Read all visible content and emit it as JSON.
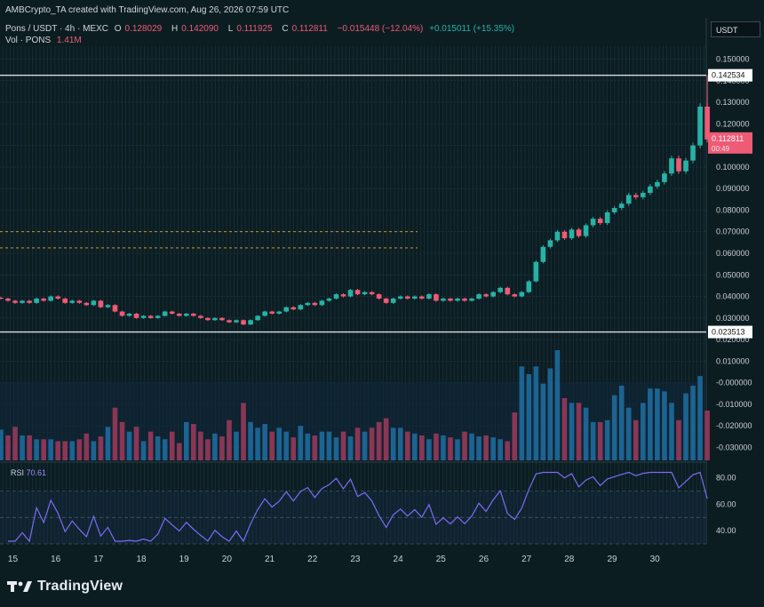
{
  "header": {
    "credit": "AMBCrypto_TA created with TradingView.com, Aug 26, 2026 07:59 UTC",
    "symbol": "Pons / USDT · 4h · MEXC",
    "o_label": "O",
    "o_value": "0.128029",
    "h_label": "H",
    "h_value": "0.142090",
    "l_label": "L",
    "l_value": "0.111925",
    "c_label": "C",
    "c_value": "0.112811",
    "change": "−0.015448 (−12.04%)",
    "change2": "+0.015011 (+15.35%)",
    "vol_label": "Vol · PONS",
    "vol_value": "1.41M"
  },
  "quote_badge": "USDT",
  "rsi": {
    "label": "RSI",
    "value": "70.61"
  },
  "brand": "TradingView",
  "colors": {
    "up": "#26b3a6",
    "down": "#ef5a74",
    "rsi_line": "#7b6cf6",
    "level_line": "#d8dde0",
    "dashed": "#e3a632",
    "background": "#0c1d22"
  },
  "icons": {
    "logo": "tradingview-logo-icon"
  },
  "chart_data": {
    "type": "candlestick",
    "price_axis": {
      "ticks": [
        "0.150000",
        "0.140000",
        "0.130000",
        "0.120000",
        "0.110000",
        "0.100000",
        "0.090000",
        "0.080000",
        "0.070000",
        "0.060000",
        "0.050000",
        "0.040000",
        "0.030000",
        "0.020000",
        "0.010000",
        "-0.000000",
        "-0.010000",
        "-0.020000",
        "-0.030000"
      ],
      "min": -0.036,
      "max": 0.156
    },
    "x_axis": {
      "ticks": [
        "15",
        "16",
        "17",
        "18",
        "19",
        "20",
        "21",
        "22",
        "23",
        "24",
        "25",
        "26",
        "27",
        "28",
        "29",
        "30"
      ],
      "start_day": 14.7,
      "end_day": 31.2
    },
    "levels": [
      {
        "value": 0.142534,
        "label": "0.142534"
      },
      {
        "value": 0.023513,
        "label": "0.023513"
      }
    ],
    "dashed_levels": [
      0.07,
      0.0625
    ],
    "last_price": {
      "label": "0.112811",
      "countdown": "00:49"
    },
    "candle_start_day": 14.72,
    "candle_interval_days": 0.1667,
    "closes": [
      0.039,
      0.038,
      0.037,
      0.038,
      0.037,
      0.039,
      0.038,
      0.04,
      0.039,
      0.037,
      0.038,
      0.037,
      0.036,
      0.038,
      0.035,
      0.036,
      0.033,
      0.031,
      0.032,
      0.03,
      0.031,
      0.03,
      0.031,
      0.033,
      0.032,
      0.031,
      0.032,
      0.031,
      0.03,
      0.029,
      0.03,
      0.029,
      0.028,
      0.029,
      0.027,
      0.029,
      0.031,
      0.033,
      0.032,
      0.033,
      0.035,
      0.034,
      0.036,
      0.037,
      0.036,
      0.038,
      0.039,
      0.041,
      0.04,
      0.043,
      0.041,
      0.042,
      0.041,
      0.039,
      0.037,
      0.039,
      0.04,
      0.039,
      0.04,
      0.039,
      0.041,
      0.038,
      0.039,
      0.038,
      0.039,
      0.038,
      0.039,
      0.041,
      0.04,
      0.042,
      0.044,
      0.041,
      0.04,
      0.042,
      0.047,
      0.056,
      0.063,
      0.066,
      0.07,
      0.067,
      0.071,
      0.068,
      0.073,
      0.076,
      0.074,
      0.079,
      0.081,
      0.083,
      0.087,
      0.086,
      0.088,
      0.091,
      0.093,
      0.097,
      0.104,
      0.098,
      0.103,
      0.11,
      0.128,
      0.1128
    ],
    "volume": [
      32,
      26,
      35,
      26,
      26,
      22,
      22,
      22,
      20,
      20,
      20,
      22,
      28,
      20,
      25,
      35,
      55,
      40,
      30,
      35,
      20,
      30,
      25,
      22,
      30,
      18,
      40,
      38,
      30,
      22,
      28,
      25,
      42,
      30,
      60,
      40,
      34,
      38,
      30,
      34,
      30,
      24,
      36,
      28,
      26,
      30,
      30,
      24,
      30,
      25,
      34,
      30,
      34,
      40,
      44,
      34,
      34,
      30,
      28,
      26,
      22,
      28,
      26,
      24,
      22,
      30,
      28,
      25,
      26,
      24,
      22,
      20,
      50,
      98,
      90,
      98,
      80,
      96,
      115,
      65,
      60,
      60,
      55,
      40,
      40,
      42,
      68,
      78,
      55,
      42,
      60,
      75,
      75,
      72,
      60,
      42,
      70,
      78,
      88,
      52
    ]
  }
}
